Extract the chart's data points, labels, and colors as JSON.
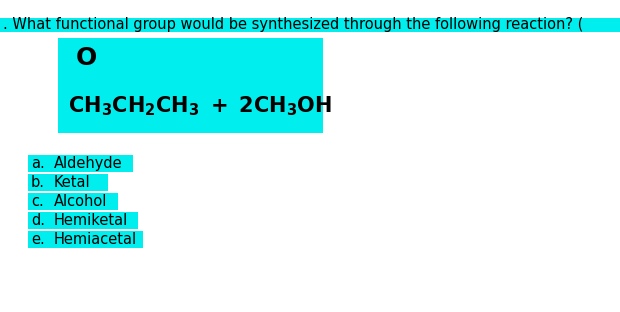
{
  "background_color": "#ffffff",
  "cyan_color": "#00EEEE",
  "text_color": "#000000",
  "question_text": ". What functional group would be synthesized through the following reaction? (",
  "question_fontsize": 10.5,
  "reaction_fontsize": 15,
  "reaction_fontweight": "bold",
  "choices": [
    {
      "label": "a.",
      "text": "Aldehyde"
    },
    {
      "label": "b.",
      "text": "Ketal"
    },
    {
      "label": "c.",
      "text": "Alcohol"
    },
    {
      "label": "d.",
      "text": "Hemiketal"
    },
    {
      "label": "e.",
      "text": "Hemiacetal"
    }
  ],
  "choice_fontsize": 10.5,
  "fig_width": 6.2,
  "fig_height": 3.12,
  "dpi": 100
}
